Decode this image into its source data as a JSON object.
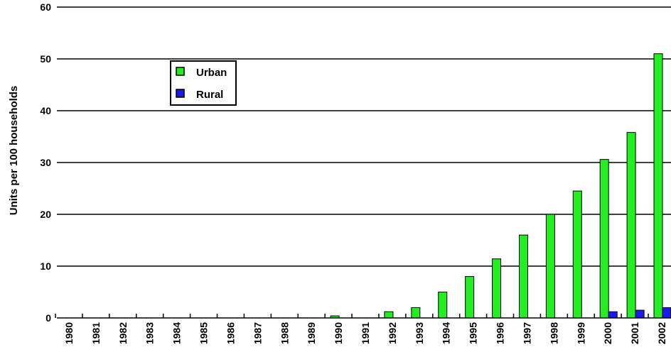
{
  "chart_data": {
    "type": "bar",
    "ylabel": "Units per 100 households",
    "ylim": [
      0,
      60
    ],
    "yticks": [
      "0",
      "10",
      "20",
      "30",
      "40",
      "50",
      "60"
    ],
    "grid": true,
    "legend_position": "top-left",
    "categories": [
      "1980",
      "1981",
      "1982",
      "1983",
      "1984",
      "1985",
      "1986",
      "1987",
      "1988",
      "1989",
      "1990",
      "1991",
      "1992",
      "1993",
      "1994",
      "1995",
      "1996",
      "1997",
      "1998",
      "1999",
      "2000",
      "2001",
      "2002"
    ],
    "series": [
      {
        "name": "Urban",
        "color": "#22ee22",
        "values": [
          0,
          0,
          0,
          0,
          0,
          0,
          0,
          0,
          0,
          0,
          0.4,
          0,
          1.2,
          2,
          5,
          8,
          11.4,
          16,
          20,
          24.5,
          30.6,
          35.8,
          51
        ]
      },
      {
        "name": "Rural",
        "color": "#1a1aee",
        "values": [
          0,
          0,
          0,
          0,
          0,
          0,
          0,
          0,
          0,
          0,
          0,
          0,
          0,
          0,
          0,
          0,
          0,
          0,
          0,
          0,
          1.2,
          1.5,
          2
        ]
      }
    ]
  }
}
